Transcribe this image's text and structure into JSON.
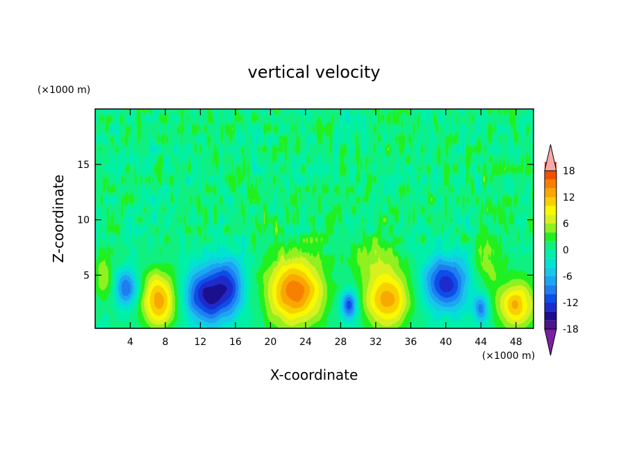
{
  "chart_data": {
    "type": "heatmap",
    "title": "vertical velocity",
    "xlabel": "X-coordinate",
    "ylabel": "Z-coordinate",
    "x_unit": "(×1000 m)",
    "y_unit": "(×1000 m)",
    "xlim": [
      0,
      50
    ],
    "ylim": [
      0.2,
      20
    ],
    "x_ticks": [
      4,
      8,
      12,
      16,
      20,
      24,
      28,
      32,
      36,
      40,
      44,
      48
    ],
    "y_ticks": [
      5,
      10,
      15
    ],
    "colorbar": {
      "levels": [
        -20,
        -18,
        -16,
        -14,
        -12,
        -10,
        -8,
        -6,
        -4,
        -2,
        0,
        2,
        4,
        6,
        8,
        10,
        12,
        14,
        16,
        18,
        20
      ],
      "tick_labels": [
        18,
        12,
        6,
        0,
        -6,
        -12,
        -18
      ],
      "extend": "both",
      "colors": [
        "#7b1fa2",
        "#4a148c",
        "#1a0f8c",
        "#1e2bcc",
        "#0c4ee8",
        "#1f7df0",
        "#1aa6f2",
        "#17c8e8",
        "#00e3d0",
        "#00f0a8",
        "#10f080",
        "#20f020",
        "#90f020",
        "#d8f020",
        "#f8f800",
        "#f8d000",
        "#f8a800",
        "#f88000",
        "#f05000",
        "#f02000",
        "#f8a8a8"
      ]
    },
    "cells": [
      {
        "x": 3.5,
        "z": 3.8,
        "sx": 0.9,
        "sz": 1.2,
        "amp": -10
      },
      {
        "x": 1.0,
        "z": 4.8,
        "sx": 0.8,
        "sz": 1.5,
        "amp": 6
      },
      {
        "x": 7.3,
        "z": 2.8,
        "sx": 1.4,
        "sz": 1.8,
        "amp": 13
      },
      {
        "x": 13.0,
        "z": 3.2,
        "sx": 1.9,
        "sz": 1.8,
        "amp": -15
      },
      {
        "x": 15.5,
        "z": 4.6,
        "sx": 1.2,
        "sz": 1.8,
        "amp": -7
      },
      {
        "x": 22.8,
        "z": 3.6,
        "sx": 2.3,
        "sz": 2.3,
        "amp": 15
      },
      {
        "x": 29.0,
        "z": 2.3,
        "sx": 0.7,
        "sz": 1.0,
        "amp": -12
      },
      {
        "x": 33.2,
        "z": 2.8,
        "sx": 1.9,
        "sz": 1.9,
        "amp": 13
      },
      {
        "x": 31.5,
        "z": 6.5,
        "sx": 2.2,
        "sz": 1.2,
        "amp": 4
      },
      {
        "x": 40.0,
        "z": 4.3,
        "sx": 1.8,
        "sz": 1.7,
        "amp": -13
      },
      {
        "x": 44.0,
        "z": 2.0,
        "sx": 0.6,
        "sz": 0.9,
        "amp": -9
      },
      {
        "x": 44.8,
        "z": 6.0,
        "sx": 1.1,
        "sz": 1.8,
        "amp": 5
      },
      {
        "x": 48.0,
        "z": 2.3,
        "sx": 1.5,
        "sz": 1.5,
        "amp": 12
      }
    ]
  }
}
